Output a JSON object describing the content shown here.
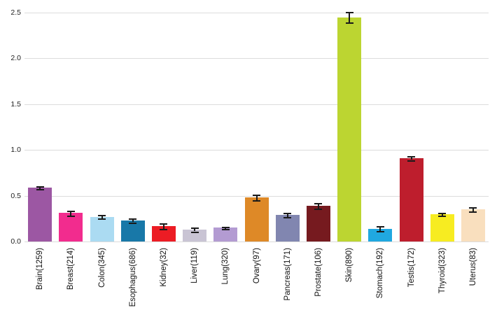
{
  "chart_data": {
    "type": "bar",
    "title": "",
    "xlabel": "",
    "ylabel": "",
    "categories": [
      "Brain(1259)",
      "Breast(214)",
      "Colon(345)",
      "Esophagus(686)",
      "Kidney(32)",
      "Liver(119)",
      "Lung(320)",
      "Ovary(97)",
      "Pancreas(171)",
      "Prostate(106)",
      "Skin(890)",
      "Stomach(192)",
      "Testis(172)",
      "Thyroid(323)",
      "Uterus(83)"
    ],
    "values": [
      0.59,
      0.31,
      0.27,
      0.23,
      0.17,
      0.13,
      0.15,
      0.48,
      0.29,
      0.39,
      2.45,
      0.14,
      0.91,
      0.3,
      0.35
    ],
    "errors": [
      0.015,
      0.03,
      0.02,
      0.02,
      0.03,
      0.02,
      0.01,
      0.03,
      0.025,
      0.03,
      0.06,
      0.025,
      0.02,
      0.015,
      0.025
    ],
    "colors": [
      "#9C57A3",
      "#F22C8E",
      "#ABDBF2",
      "#1878A8",
      "#EC1C24",
      "#C9C4D4",
      "#B39BD2",
      "#DE8927",
      "#8186B0",
      "#761A1F",
      "#BCD531",
      "#20A8E0",
      "#BE1E2D",
      "#F7EC21",
      "#F9DFBE"
    ],
    "yticks": [
      "0.0",
      "0.5",
      "1.0",
      "1.5",
      "2.0",
      "2.5"
    ],
    "ylim": [
      0,
      2.5
    ],
    "grid": true,
    "legend_position": "none",
    "error_bar_color": "#1a1a1a",
    "background": "#ffffff"
  }
}
